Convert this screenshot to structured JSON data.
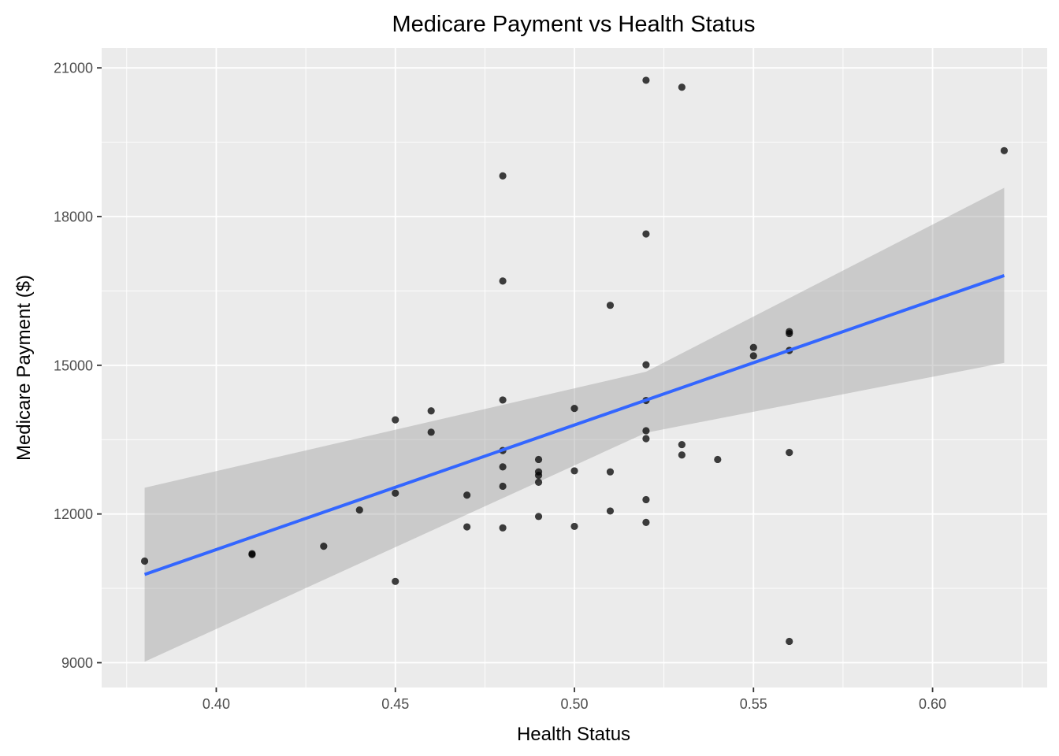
{
  "chart_data": {
    "type": "scatter",
    "title": "Medicare Payment vs Health Status",
    "xlabel": "Health Status",
    "ylabel": "Medicare Payment ($)",
    "xlim": [
      0.368,
      0.632
    ],
    "ylim": [
      8500,
      21400
    ],
    "x_ticks": [
      0.4,
      0.45,
      0.5,
      0.55,
      0.6
    ],
    "x_tick_labels": [
      "0.40",
      "0.45",
      "0.50",
      "0.55",
      "0.60"
    ],
    "y_ticks": [
      9000,
      12000,
      15000,
      18000,
      21000
    ],
    "y_tick_labels": [
      "9000",
      "12000",
      "15000",
      "18000",
      "21000"
    ],
    "grid": true,
    "colors": {
      "panel": "#ebebeb",
      "grid": "#ffffff",
      "points": "#000000",
      "fit_line": "#3366ff",
      "confidence_band": "#999999"
    },
    "series": [
      {
        "name": "observations",
        "points": [
          [
            0.38,
            11050
          ],
          [
            0.41,
            11200
          ],
          [
            0.41,
            11180
          ],
          [
            0.43,
            11350
          ],
          [
            0.44,
            12080
          ],
          [
            0.45,
            13900
          ],
          [
            0.45,
            12420
          ],
          [
            0.45,
            10640
          ],
          [
            0.46,
            14080
          ],
          [
            0.46,
            13650
          ],
          [
            0.47,
            12380
          ],
          [
            0.47,
            11740
          ],
          [
            0.48,
            18820
          ],
          [
            0.48,
            16700
          ],
          [
            0.48,
            14300
          ],
          [
            0.48,
            13280
          ],
          [
            0.48,
            12950
          ],
          [
            0.48,
            12560
          ],
          [
            0.48,
            11720
          ],
          [
            0.49,
            13100
          ],
          [
            0.49,
            12850
          ],
          [
            0.49,
            12780
          ],
          [
            0.49,
            12640
          ],
          [
            0.49,
            11950
          ],
          [
            0.5,
            14130
          ],
          [
            0.5,
            12870
          ],
          [
            0.5,
            11750
          ],
          [
            0.51,
            16210
          ],
          [
            0.51,
            12850
          ],
          [
            0.51,
            12060
          ],
          [
            0.52,
            20750
          ],
          [
            0.52,
            17650
          ],
          [
            0.52,
            15010
          ],
          [
            0.52,
            14290
          ],
          [
            0.52,
            13680
          ],
          [
            0.52,
            13520
          ],
          [
            0.52,
            12290
          ],
          [
            0.52,
            11830
          ],
          [
            0.53,
            20610
          ],
          [
            0.53,
            13400
          ],
          [
            0.53,
            13190
          ],
          [
            0.54,
            13100
          ],
          [
            0.55,
            15360
          ],
          [
            0.55,
            15190
          ],
          [
            0.56,
            15680
          ],
          [
            0.56,
            15640
          ],
          [
            0.56,
            15300
          ],
          [
            0.56,
            13240
          ],
          [
            0.56,
            9430
          ],
          [
            0.62,
            19330
          ]
        ]
      }
    ],
    "fit": {
      "method": "linear regression",
      "x": [
        0.38,
        0.62
      ],
      "y": [
        10780,
        16810
      ],
      "confidence_band": {
        "x": [
          0.38,
          0.52,
          0.62
        ],
        "lower": [
          9020,
          13640,
          15050
        ],
        "upper": [
          12530,
          14870,
          18580
        ]
      }
    }
  }
}
